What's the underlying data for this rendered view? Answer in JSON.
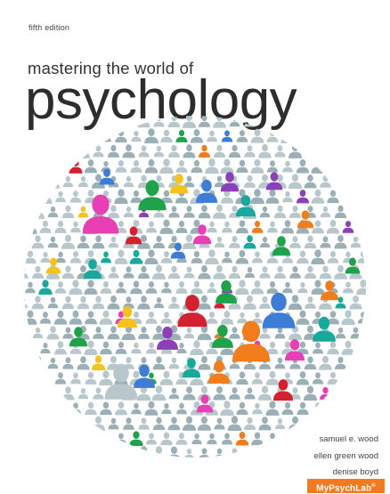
{
  "book": {
    "edition": "fifth edition",
    "subtitle": "mastering the world of",
    "title": "psychology",
    "authors": [
      "samuel e. wood",
      "ellen green wood",
      "denise boyd"
    ],
    "badge": "MyPsychLab",
    "badge_mark": "®"
  },
  "colors": {
    "background": "#ffffff",
    "figure_default": "#b7c7cc",
    "figure_dark": "#9aafb6",
    "accents": [
      "#e83fb4",
      "#1ea34a",
      "#f27d1d",
      "#3d7dd8",
      "#8c3fb8",
      "#f7c21b",
      "#17a89e",
      "#d3222f"
    ],
    "badge": "#f37a1f"
  },
  "illustration": {
    "shape": "circle",
    "icon": "person-silhouette-icon",
    "description_color_note": "crowd of person icons inside a circle"
  }
}
